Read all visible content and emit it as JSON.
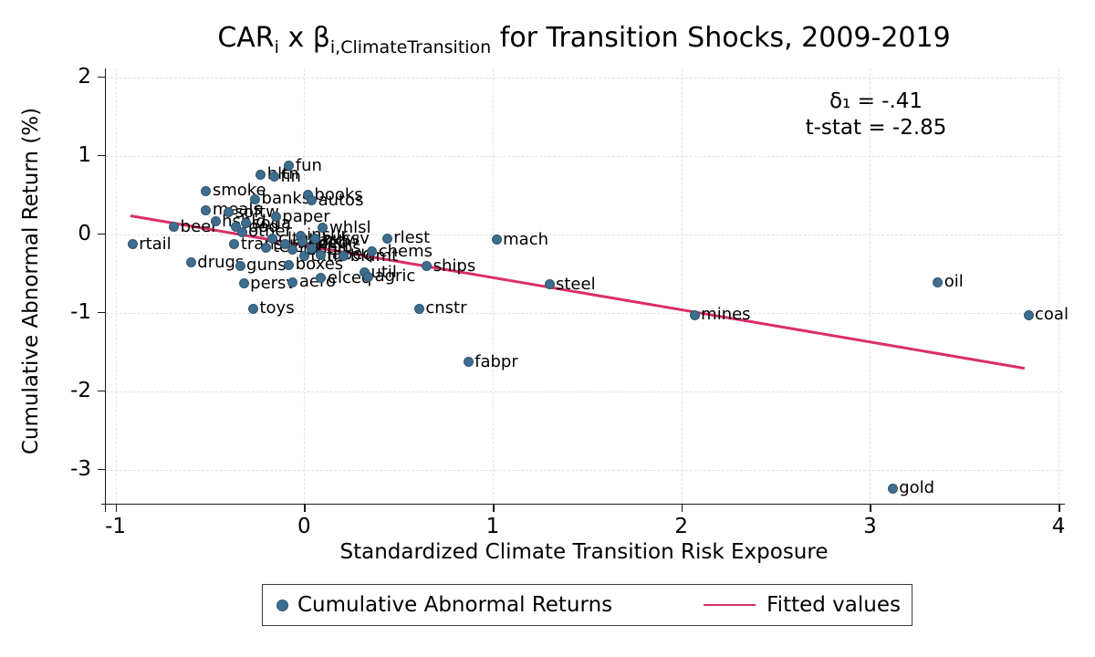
{
  "ui": {
    "title": {
      "car": "CAR",
      "car_sub": "i",
      "times": " x ",
      "beta": "β",
      "beta_sub": "i,ClimateTransition",
      "rest": " for Transition Shocks, 2009-2019"
    },
    "annotation": {
      "line1": "δ₁ = -.41",
      "line2": "t-stat = -2.85"
    },
    "x_axis_label": "Standardized Climate Transition Risk Exposure",
    "y_axis_label": "Cumulative Abnormal Return (%)",
    "legend": {
      "series1": "Cumulative Abnormal Returns",
      "series2": "Fitted values"
    }
  },
  "colors": {
    "dot_fill": "#3f6d8e",
    "dot_border": "#2e5671",
    "fit_line": "#db2e66",
    "grid": "#e2e2e2",
    "axis": "#1a1a1a"
  },
  "chart_data": {
    "type": "scatter",
    "title": "CAR_i x β_i,ClimateTransition for Transition Shocks, 2009-2019",
    "xlabel": "Standardized Climate Transition Risk Exposure",
    "ylabel": "Cumulative Abnormal Return (%)",
    "xlim": [
      -1.05,
      4.05
    ],
    "ylim": [
      -3.45,
      2.11
    ],
    "x_ticks": [
      -1,
      0,
      1,
      2,
      3,
      4
    ],
    "y_ticks": [
      2,
      1,
      0,
      -1,
      -2,
      -3
    ],
    "grid": true,
    "legend_position": "bottom",
    "stats": {
      "delta1": -0.41,
      "t_stat": -2.85
    },
    "series": [
      {
        "name": "Cumulative Abnormal Returns",
        "type": "scatter",
        "points": [
          {
            "label": "rtail",
            "x": -0.91,
            "y": -0.13
          },
          {
            "label": "beer",
            "x": -0.69,
            "y": 0.09
          },
          {
            "label": "drugs",
            "x": -0.6,
            "y": -0.36
          },
          {
            "label": "smoke",
            "x": -0.52,
            "y": 0.55
          },
          {
            "label": "meals",
            "x": -0.52,
            "y": 0.31
          },
          {
            "label": "hshld",
            "x": -0.47,
            "y": 0.16
          },
          {
            "label": "softw",
            "x": -0.4,
            "y": 0.28
          },
          {
            "label": "trans",
            "x": -0.37,
            "y": -0.13
          },
          {
            "label": "food",
            "x": -0.36,
            "y": 0.09
          },
          {
            "label": "guns",
            "x": -0.34,
            "y": -0.4
          },
          {
            "label": "other",
            "x": -0.33,
            "y": 0.03
          },
          {
            "label": "persv",
            "x": -0.32,
            "y": -0.63
          },
          {
            "label": "soda",
            "x": -0.31,
            "y": 0.14
          },
          {
            "label": "toys",
            "x": -0.27,
            "y": -0.95
          },
          {
            "label": "banks",
            "x": -0.26,
            "y": 0.45
          },
          {
            "label": "hlth",
            "x": -0.23,
            "y": 0.76
          },
          {
            "label": "telcm",
            "x": -0.2,
            "y": -0.17
          },
          {
            "label": "clths",
            "x": -0.17,
            "y": -0.06
          },
          {
            "label": "fin",
            "x": -0.16,
            "y": 0.73
          },
          {
            "label": "paper",
            "x": -0.15,
            "y": 0.22
          },
          {
            "label": "medeq",
            "x": -0.1,
            "y": -0.12
          },
          {
            "label": "fun",
            "x": -0.08,
            "y": 0.87
          },
          {
            "label": "boxes",
            "x": -0.08,
            "y": -0.39
          },
          {
            "label": "aero",
            "x": -0.06,
            "y": -0.61
          },
          {
            "label": "rubbr",
            "x": -0.06,
            "y": -0.2
          },
          {
            "label": "insur",
            "x": -0.02,
            "y": -0.02
          },
          {
            "label": "hardw",
            "x": -0.01,
            "y": -0.09
          },
          {
            "label": "txtls",
            "x": 0.0,
            "y": -0.28
          },
          {
            "label": "books",
            "x": 0.02,
            "y": 0.5
          },
          {
            "label": "autos",
            "x": 0.04,
            "y": 0.43
          },
          {
            "label": "chips",
            "x": 0.04,
            "y": -0.18
          },
          {
            "label": "bussv",
            "x": 0.06,
            "y": -0.06
          },
          {
            "label": "labeq",
            "x": 0.09,
            "y": -0.26
          },
          {
            "label": "elceq",
            "x": 0.09,
            "y": -0.56
          },
          {
            "label": "whlsl",
            "x": 0.1,
            "y": 0.08
          },
          {
            "label": "bldmt",
            "x": 0.21,
            "y": -0.28
          },
          {
            "label": "util",
            "x": 0.32,
            "y": -0.49
          },
          {
            "label": "agric",
            "x": 0.34,
            "y": -0.54
          },
          {
            "label": "chems",
            "x": 0.36,
            "y": -0.22
          },
          {
            "label": "rlest",
            "x": 0.44,
            "y": -0.05
          },
          {
            "label": "cnstr",
            "x": 0.61,
            "y": -0.95
          },
          {
            "label": "ships",
            "x": 0.65,
            "y": -0.41
          },
          {
            "label": "fabpr",
            "x": 0.87,
            "y": -1.63
          },
          {
            "label": "mach",
            "x": 1.02,
            "y": -0.07
          },
          {
            "label": "steel",
            "x": 1.3,
            "y": -0.64
          },
          {
            "label": "mines",
            "x": 2.07,
            "y": -1.03
          },
          {
            "label": "gold",
            "x": 3.12,
            "y": -3.24
          },
          {
            "label": "oil",
            "x": 3.36,
            "y": -0.61
          },
          {
            "label": "coal",
            "x": 3.84,
            "y": -1.03
          }
        ]
      }
    ],
    "fit_line": {
      "name": "Fitted values",
      "slope": -0.41,
      "intercept": -0.14,
      "x_start": -0.92,
      "x_end": 3.82
    }
  }
}
